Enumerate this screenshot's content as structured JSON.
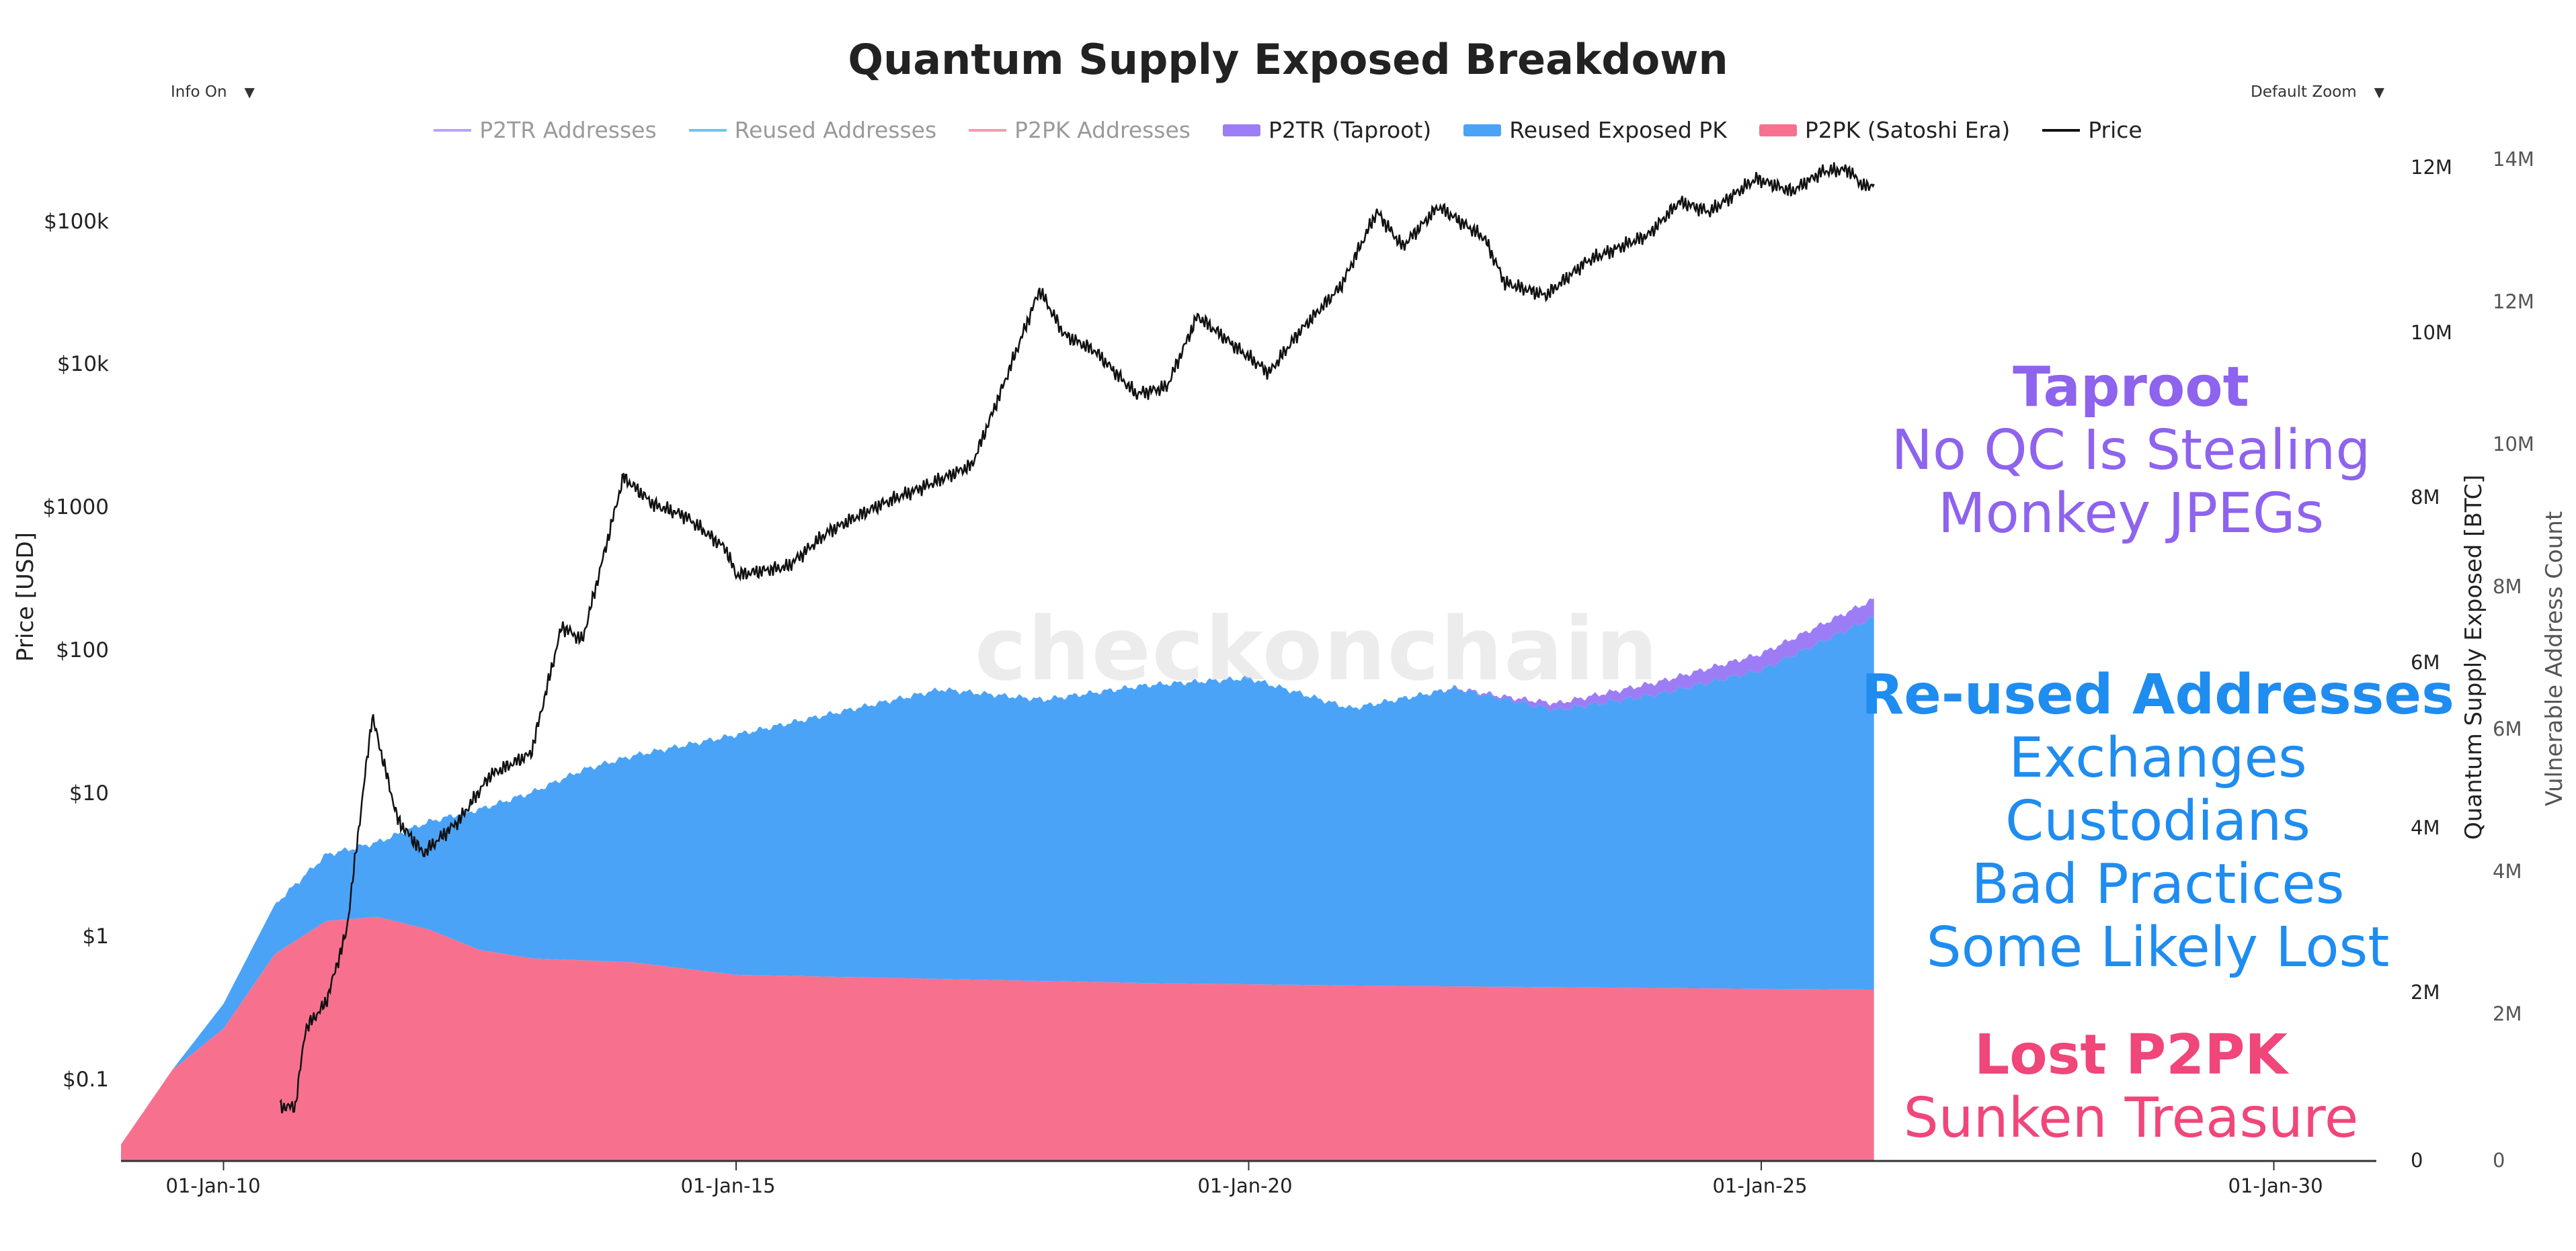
{
  "title": "Quantum Supply Exposed Breakdown",
  "controls": {
    "info_label": "Info On",
    "zoom_label": "Default Zoom"
  },
  "legend": [
    {
      "label": "P2TR Addresses",
      "color": "#b9a3f7",
      "style": "line",
      "active": false
    },
    {
      "label": "Reused Addresses",
      "color": "#6cc8ea",
      "style": "line",
      "active": false
    },
    {
      "label": "P2PK Addresses",
      "color": "#f59ab1",
      "style": "line",
      "active": false
    },
    {
      "label": "P2TR (Taproot)",
      "color": "#9d7df5",
      "style": "box",
      "active": true
    },
    {
      "label": "Reused Exposed PK",
      "color": "#4aa3f7",
      "style": "box",
      "active": true
    },
    {
      "label": "P2PK (Satoshi Era)",
      "color": "#f7718f",
      "style": "box",
      "active": true
    },
    {
      "label": "Price",
      "color": "#111111",
      "style": "line",
      "active": true
    }
  ],
  "watermark": "checkonchain",
  "annotations": {
    "taproot": {
      "head": "Taproot",
      "lines": [
        "No QC Is Stealing",
        "Monkey JPEGs"
      ],
      "color": "#8e63ee"
    },
    "reused": {
      "head": "Re-used Addresses",
      "lines": [
        "Exchanges",
        "Custodians",
        "Bad Practices",
        "Some Likely Lost"
      ],
      "color": "#1f8cf0"
    },
    "p2pk": {
      "head": "Lost P2PK",
      "lines": [
        "Sunken Treasure"
      ],
      "color": "#f0467a"
    }
  },
  "chart_data": {
    "type": "area",
    "title": "Quantum Supply Exposed Breakdown",
    "x_axis": {
      "ticks": [
        "01-Jan-10",
        "01-Jan-15",
        "01-Jan-20",
        "01-Jan-25",
        "01-Jan-30"
      ],
      "range": [
        "2009-01-03",
        "2031-01-01"
      ]
    },
    "y_left": {
      "label": "Price [USD]",
      "scale": "log",
      "ticks": [
        "$0.1",
        "$1",
        "$10",
        "$100",
        "$1000",
        "$10k",
        "$100k"
      ],
      "range": [
        0.01,
        300000
      ]
    },
    "y_right": {
      "label": "Quantum Supply Exposed [BTC]",
      "ticks": [
        "0",
        "2M",
        "4M",
        "6M",
        "8M",
        "10M",
        "12M"
      ],
      "range": [
        0,
        12000000
      ]
    },
    "y_right2": {
      "label": "Vulnerable Address Count",
      "ticks": [
        "0",
        "2M",
        "4M",
        "6M",
        "8M",
        "10M",
        "12M",
        "14M"
      ],
      "range": [
        0,
        14000000
      ]
    },
    "series": [
      {
        "name": "P2PK (Satoshi Era)",
        "color": "#f7718f",
        "stack": true,
        "points": [
          [
            2009.0,
            0.2
          ],
          [
            2009.5,
            1.1
          ],
          [
            2010.0,
            1.6
          ],
          [
            2010.5,
            2.5
          ],
          [
            2011.0,
            2.9
          ],
          [
            2011.5,
            2.95
          ],
          [
            2012.0,
            2.8
          ],
          [
            2012.5,
            2.55
          ],
          [
            2013.0,
            2.45
          ],
          [
            2014.0,
            2.4
          ],
          [
            2015.0,
            2.25
          ],
          [
            2017.0,
            2.2
          ],
          [
            2019.0,
            2.15
          ],
          [
            2021.0,
            2.12
          ],
          [
            2023.0,
            2.1
          ],
          [
            2025.0,
            2.08
          ],
          [
            2026.1,
            2.07
          ]
        ]
      },
      {
        "name": "Reused Exposed PK",
        "color": "#4aa3f7",
        "stack": true,
        "points": [
          [
            2009.0,
            0.0
          ],
          [
            2009.5,
            0.0
          ],
          [
            2010.0,
            0.3
          ],
          [
            2010.5,
            0.6
          ],
          [
            2011.0,
            0.8
          ],
          [
            2011.5,
            0.9
          ],
          [
            2012.0,
            1.3
          ],
          [
            2012.5,
            1.7
          ],
          [
            2013.0,
            2.0
          ],
          [
            2013.5,
            2.3
          ],
          [
            2014.0,
            2.5
          ],
          [
            2014.5,
            2.7
          ],
          [
            2015.0,
            2.9
          ],
          [
            2016.0,
            3.2
          ],
          [
            2017.0,
            3.5
          ],
          [
            2018.0,
            3.4
          ],
          [
            2019.0,
            3.6
          ],
          [
            2020.0,
            3.7
          ],
          [
            2021.0,
            3.35
          ],
          [
            2022.0,
            3.6
          ],
          [
            2023.0,
            3.35
          ],
          [
            2024.0,
            3.55
          ],
          [
            2025.0,
            3.85
          ],
          [
            2026.1,
            4.5
          ]
        ]
      },
      {
        "name": "P2TR (Taproot)",
        "color": "#9d7df5",
        "stack": true,
        "points": [
          [
            2009.0,
            0
          ],
          [
            2021.8,
            0
          ],
          [
            2022.5,
            0.03
          ],
          [
            2023.0,
            0.08
          ],
          [
            2024.0,
            0.15
          ],
          [
            2025.0,
            0.2
          ],
          [
            2026.1,
            0.22
          ]
        ]
      },
      {
        "name": "Price",
        "color": "#111111",
        "axis": "left",
        "points": [
          [
            2010.55,
            0.06
          ],
          [
            2010.7,
            0.06
          ],
          [
            2010.8,
            0.2
          ],
          [
            2011.0,
            0.3
          ],
          [
            2011.2,
            0.9
          ],
          [
            2011.45,
            25
          ],
          [
            2011.7,
            5
          ],
          [
            2011.95,
            3
          ],
          [
            2012.3,
            5
          ],
          [
            2012.6,
            10
          ],
          [
            2013.0,
            14
          ],
          [
            2013.3,
            100
          ],
          [
            2013.5,
            80
          ],
          [
            2013.9,
            1000
          ],
          [
            2014.2,
            650
          ],
          [
            2014.5,
            550
          ],
          [
            2014.9,
            330
          ],
          [
            2015.0,
            220
          ],
          [
            2015.5,
            250
          ],
          [
            2015.9,
            430
          ],
          [
            2016.4,
            650
          ],
          [
            2016.9,
            900
          ],
          [
            2017.3,
            1200
          ],
          [
            2017.6,
            4000
          ],
          [
            2017.96,
            18000
          ],
          [
            2018.2,
            9000
          ],
          [
            2018.5,
            7000
          ],
          [
            2018.9,
            3600
          ],
          [
            2019.2,
            4000
          ],
          [
            2019.5,
            12000
          ],
          [
            2019.9,
            7200
          ],
          [
            2020.2,
            5000
          ],
          [
            2020.5,
            9500
          ],
          [
            2020.9,
            19000
          ],
          [
            2021.25,
            60000
          ],
          [
            2021.5,
            35000
          ],
          [
            2021.85,
            65000
          ],
          [
            2022.3,
            40000
          ],
          [
            2022.5,
            20000
          ],
          [
            2022.9,
            16500
          ],
          [
            2023.3,
            28000
          ],
          [
            2023.9,
            42000
          ],
          [
            2024.2,
            70000
          ],
          [
            2024.5,
            60000
          ],
          [
            2024.95,
            100000
          ],
          [
            2025.3,
            82000
          ],
          [
            2025.6,
            112000
          ],
          [
            2025.85,
            115000
          ],
          [
            2026.0,
            88000
          ],
          [
            2026.1,
            92000
          ]
        ]
      }
    ],
    "grid": false,
    "legend_position": "top"
  }
}
